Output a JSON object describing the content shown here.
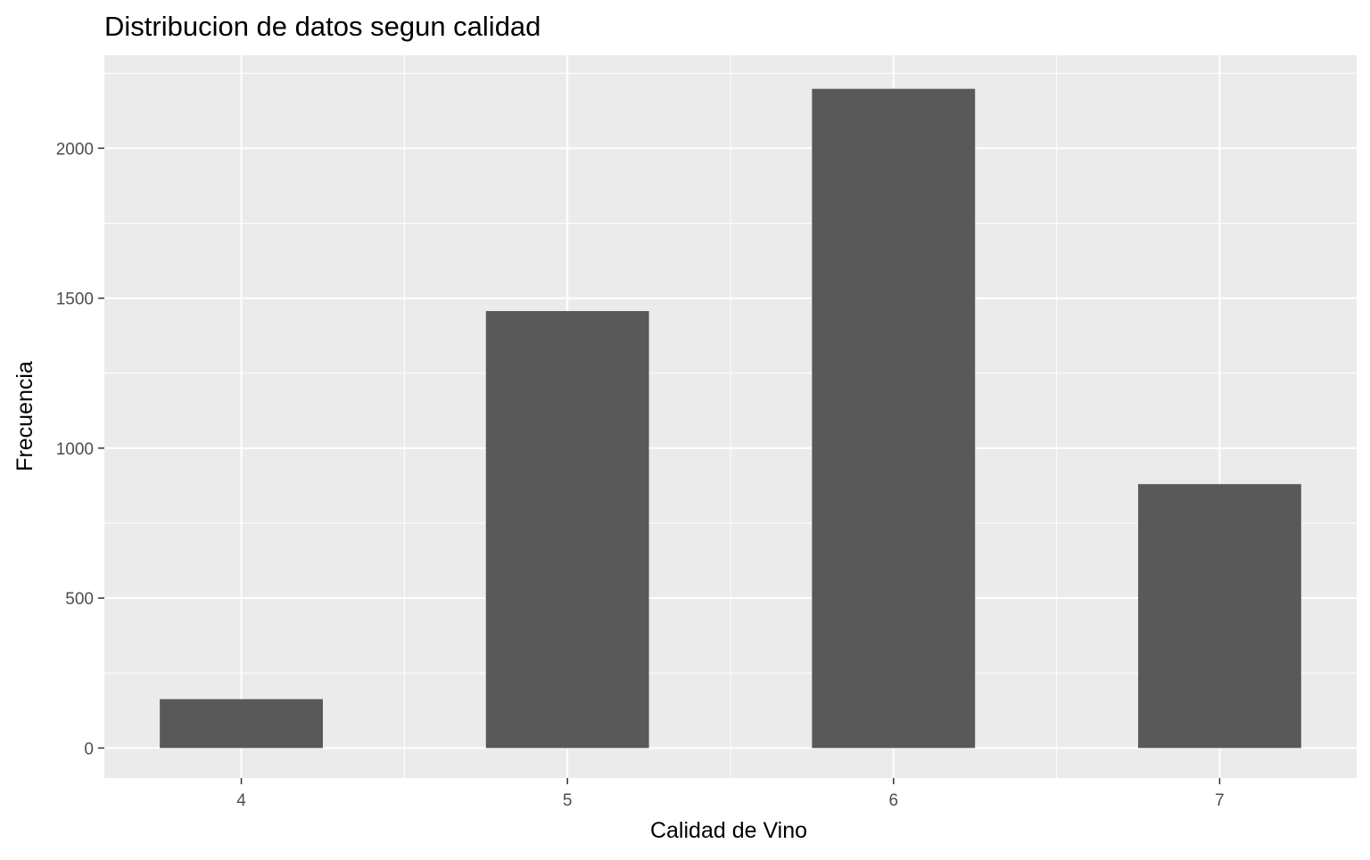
{
  "chart_data": {
    "type": "bar",
    "title": "Distribucion de datos segun calidad",
    "xlabel": "Calidad de Vino",
    "ylabel": "Frecuencia",
    "categories": [
      "4",
      "5",
      "6",
      "7"
    ],
    "values": [
      163,
      1457,
      2198,
      880
    ],
    "ylim": [
      -100,
      2310
    ],
    "xlim": [
      3.58,
      7.42
    ],
    "yticks": [
      0,
      500,
      1000,
      1500,
      2000
    ],
    "ytick_labels": [
      "0",
      "500",
      "1000",
      "1500",
      "2000"
    ],
    "bar_width": 0.5,
    "grid": true,
    "legend": "none",
    "colors": {
      "bar": "#595959",
      "panel_background": "#ebebeb",
      "grid_line": "#ffffff",
      "tick_label": "#4d4d4d",
      "tick_mark": "#333333",
      "text": "#000000"
    }
  }
}
